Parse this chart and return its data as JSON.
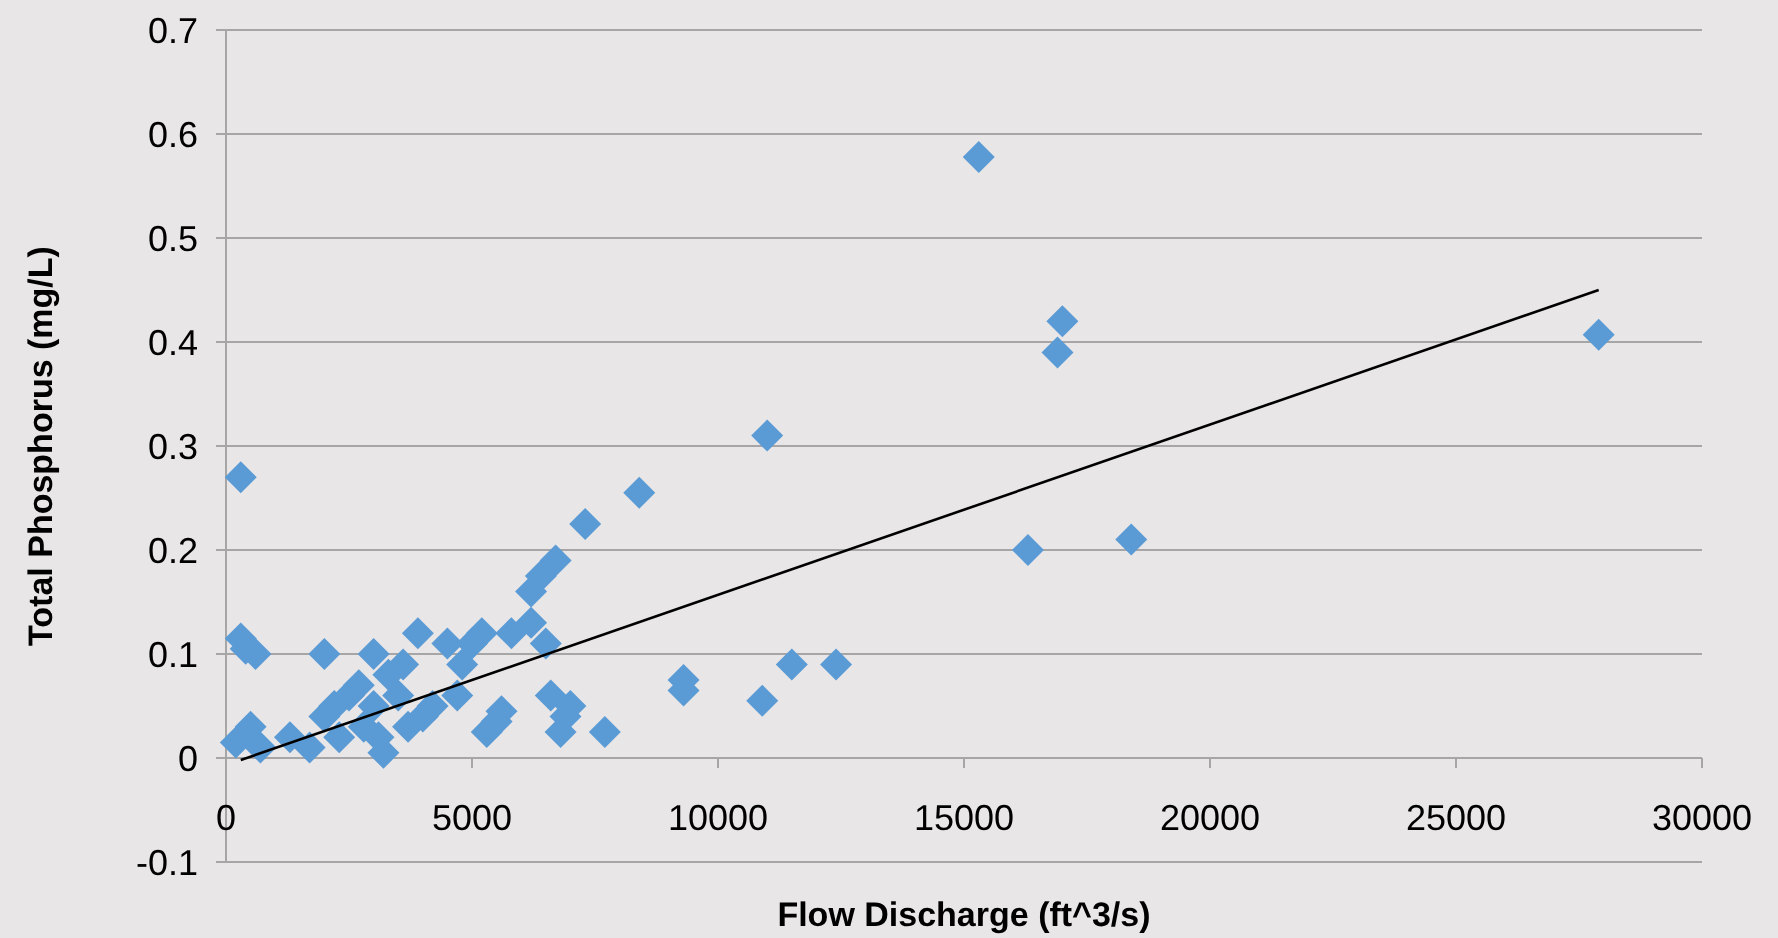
{
  "chart_data": {
    "type": "scatter",
    "xlabel": "Flow Discharge (ft^3/s)",
    "ylabel": "Total Phosphorus (mg/L)",
    "xlim": [
      0,
      30000
    ],
    "xticks": [
      0,
      5000,
      10000,
      15000,
      20000,
      25000,
      30000
    ],
    "ylim": [
      -0.1,
      0.7
    ],
    "yticks": [
      -0.1,
      0,
      0.1,
      0.2,
      0.3,
      0.4,
      0.5,
      0.6,
      0.7
    ],
    "grid": "y",
    "marker": "diamond",
    "series": [
      {
        "color": "#5b9bd5",
        "x": [
          300,
          300,
          400,
          600,
          200,
          500,
          700,
          1300,
          1700,
          2000,
          2000,
          2200,
          2300,
          2500,
          2700,
          2800,
          3000,
          3000,
          3100,
          3200,
          3300,
          3500,
          3600,
          3700,
          3900,
          4000,
          4200,
          4500,
          4700,
          4800,
          5000,
          5200,
          5300,
          5500,
          5600,
          5800,
          6200,
          6200,
          6400,
          6500,
          6700,
          6600,
          6800,
          6900,
          7000,
          7300,
          7700,
          8400,
          9300,
          9300,
          10900,
          11000,
          11500,
          12400,
          15300,
          16300,
          16900,
          17000,
          18400,
          27900
        ],
        "values": [
          0.27,
          0.115,
          0.105,
          0.1,
          0.015,
          0.03,
          0.01,
          0.02,
          0.01,
          0.1,
          0.04,
          0.05,
          0.02,
          0.06,
          0.07,
          0.03,
          0.1,
          0.05,
          0.02,
          0.005,
          0.08,
          0.06,
          0.09,
          0.03,
          0.12,
          0.04,
          0.05,
          0.11,
          0.06,
          0.09,
          0.11,
          0.12,
          0.025,
          0.035,
          0.045,
          0.12,
          0.13,
          0.16,
          0.175,
          0.11,
          0.19,
          0.06,
          0.025,
          0.04,
          0.05,
          0.225,
          0.025,
          0.255,
          0.075,
          0.065,
          0.055,
          0.31,
          0.09,
          0.09,
          0.578,
          0.2,
          0.39,
          0.42,
          0.21,
          0.407
        ]
      },
      {
        "type": "line",
        "color": "#000000",
        "marker": "none",
        "line_style": "solid",
        "x": [
          300,
          27900
        ],
        "values": [
          -0.002,
          0.45
        ]
      }
    ]
  }
}
